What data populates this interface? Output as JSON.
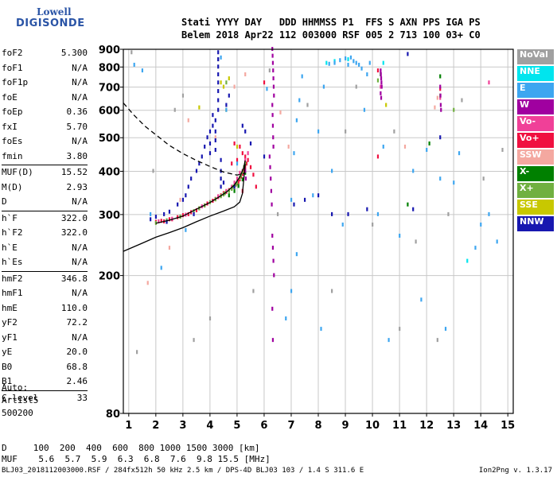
{
  "logo": {
    "line1": "Lowell",
    "line2": "DIGISONDE"
  },
  "header": {
    "line1": "Stati YYYY DAY   DDD HHMMSS P1  FFS S AXN PPS IGA PS",
    "line2": "Belem 2018 Apr22 112 003000 RSF 005 2 713 100 03+ C0"
  },
  "params": [
    {
      "label": "foF2",
      "value": "5.300"
    },
    {
      "label": "foF1",
      "value": "N/A"
    },
    {
      "label": "foF1p",
      "value": "N/A"
    },
    {
      "label": "foE",
      "value": "N/A"
    },
    {
      "label": "foEp",
      "value": "0.36"
    },
    {
      "label": "fxI",
      "value": "5.70"
    },
    {
      "label": "foEs",
      "value": "N/A"
    },
    {
      "label": "fmin",
      "value": "3.80"
    },
    {
      "label": "MUF(D)",
      "value": "15.52",
      "sep": true
    },
    {
      "label": "M(D)",
      "value": "2.93"
    },
    {
      "label": "D",
      "value": "N/A"
    },
    {
      "label": "h`F",
      "value": "322.0",
      "sep": true
    },
    {
      "label": "h`F2",
      "value": "322.0"
    },
    {
      "label": "h`E",
      "value": "N/A"
    },
    {
      "label": "h`Es",
      "value": "N/A"
    },
    {
      "label": "hmF2",
      "value": "346.8",
      "sep": true
    },
    {
      "label": "hmF1",
      "value": "N/A"
    },
    {
      "label": "hmE",
      "value": "110.0"
    },
    {
      "label": "yF2",
      "value": "72.2"
    },
    {
      "label": "yF1",
      "value": "N/A"
    },
    {
      "label": "yE",
      "value": "20.0"
    },
    {
      "label": "B0",
      "value": "68.8"
    },
    {
      "label": "B1",
      "value": "2.46"
    },
    {
      "label": "C-level",
      "value": "33",
      "sep": true
    }
  ],
  "auto": {
    "line1": "Auto:",
    "line2": "Artist5",
    "line3": "500200"
  },
  "bottom": {
    "d_line": "D     100  200  400  600  800 1000 1500 3000 [km]",
    "muf_line": "MUF    5.6  5.7  5.9  6.3  6.8  7.6  9.8 15.5 [MHz]"
  },
  "footer": {
    "text": "BLJ03_2018112003000.RSF / 284fx512h 50 kHz 2.5 km / DPS-4D BLJ03 103 / 1.4 S 311.6 E",
    "version": "Ion2Png v. 1.3.17"
  },
  "legend": [
    {
      "label": "NoVal",
      "color": "#a0a0a0"
    },
    {
      "label": "NNE",
      "color": "#00e5ee"
    },
    {
      "label": "E",
      "color": "#3da6f0"
    },
    {
      "label": "W",
      "color": "#a000a0"
    },
    {
      "label": "Vo-",
      "color": "#f04098"
    },
    {
      "label": "Vo+",
      "color": "#f01040"
    },
    {
      "label": "SSW",
      "color": "#f4a8a0"
    },
    {
      "label": "X-",
      "color": "#008000"
    },
    {
      "label": "X+",
      "color": "#70b040"
    },
    {
      "label": "SSE",
      "color": "#c8c800"
    },
    {
      "label": "NNW",
      "color": "#1818b0"
    }
  ],
  "chart_data": {
    "type": "scatter",
    "xlabel": "",
    "ylabel": "",
    "xlim": [
      0.8,
      15.2
    ],
    "ylim": [
      80,
      900
    ],
    "yscale": "log",
    "xticks": [
      1,
      2,
      3,
      4,
      5,
      6,
      7,
      8,
      9,
      10,
      11,
      12,
      13,
      14,
      15
    ],
    "yticks": [
      80,
      200,
      300,
      400,
      500,
      600,
      700,
      800,
      900
    ],
    "grid": true,
    "profile_curve": {
      "x": [
        0.8,
        1.5,
        2.0,
        2.5,
        3.0,
        3.5,
        4.0,
        4.5,
        4.9,
        5.1,
        5.2,
        5.25,
        5.3
      ],
      "y": [
        235,
        248,
        258,
        266,
        275,
        286,
        297,
        307,
        316,
        326,
        345,
        380,
        420
      ]
    },
    "trace_curve": {
      "x": [
        2.0,
        2.5,
        3.0,
        3.5,
        4.0,
        4.3,
        4.6,
        4.9,
        5.1,
        5.25,
        5.3
      ],
      "y": [
        283,
        289,
        297,
        311,
        325,
        336,
        348,
        365,
        385,
        410,
        430
      ]
    },
    "dashed_curve": {
      "x": [
        0.8,
        1.2,
        1.6,
        2.0,
        2.5,
        3.0,
        3.5,
        4.0,
        4.5,
        5.0,
        5.3
      ],
      "y": [
        630,
        580,
        540,
        510,
        475,
        450,
        430,
        413,
        398,
        390,
        395
      ]
    },
    "point_groups": [
      {
        "name": "Vo+",
        "x": [
          2.0,
          2.2,
          2.5,
          2.8,
          3.0,
          3.3,
          3.6,
          3.9,
          4.2,
          4.4,
          4.6,
          4.8,
          5.0,
          5.1,
          5.2,
          5.3,
          5.4,
          4.5,
          4.7,
          4.9,
          5.05,
          5.15,
          5.25,
          5.35,
          4.3,
          4.1,
          3.8,
          3.5,
          3.2,
          2.9,
          2.6,
          2.3,
          4.9,
          5.1,
          5.2,
          5.3,
          5.0,
          4.8,
          5.5,
          5.6,
          5.7,
          5.2,
          10.2,
          12.5,
          10.2,
          6.0
        ],
        "y": [
          285,
          287,
          290,
          294,
          298,
          304,
          312,
          322,
          332,
          340,
          348,
          357,
          368,
          378,
          392,
          410,
          430,
          345,
          352,
          360,
          372,
          385,
          400,
          420,
          336,
          328,
          318,
          308,
          300,
          295,
          290,
          286,
          480,
          470,
          450,
          440,
          430,
          420,
          410,
          390,
          360,
          350,
          780,
          690,
          440,
          720
        ]
      },
      {
        "name": "Vo-",
        "x": [
          2.1,
          2.6,
          3.1,
          3.7,
          4.3,
          4.8,
          5.0,
          5.2,
          5.3,
          4.6,
          5.1,
          5.4,
          4.9,
          10.3,
          12.5,
          14.3
        ],
        "y": [
          286,
          291,
          299,
          316,
          338,
          360,
          380,
          400,
          430,
          350,
          395,
          450,
          370,
          700,
          650,
          720
        ]
      },
      {
        "name": "X+",
        "x": [
          2.0,
          2.4,
          2.9,
          3.4,
          3.8,
          4.2,
          4.5,
          4.8,
          5.0,
          5.1,
          5.2,
          5.3,
          4.4,
          4.7,
          4.95,
          5.15,
          4.0,
          3.6,
          4.55,
          4.85,
          5.25,
          4.6,
          10.2,
          12.5,
          13.0
        ],
        "y": [
          283,
          288,
          295,
          306,
          318,
          331,
          342,
          355,
          370,
          382,
          398,
          420,
          338,
          350,
          365,
          390,
          325,
          312,
          345,
          360,
          410,
          720,
          730,
          660,
          600
        ]
      },
      {
        "name": "X-",
        "x": [
          4.9,
          5.05,
          5.2,
          5.3,
          10.3,
          11.3,
          12.1,
          12.5,
          4.7
        ],
        "y": [
          350,
          362,
          378,
          395,
          760,
          320,
          480,
          750,
          340
        ]
      },
      {
        "name": "SSW",
        "x": [
          1.7,
          2.5,
          3.2,
          4.9,
          5.3,
          6.6,
          11.2,
          12.3,
          12.4,
          4.2,
          2.9,
          6.9
        ],
        "y": [
          190,
          240,
          560,
          700,
          760,
          590,
          470,
          610,
          650,
          500,
          330,
          470
        ]
      },
      {
        "name": "SSE",
        "x": [
          3.6,
          4.5,
          4.7,
          10.5,
          4.4,
          5.0,
          4.6
        ],
        "y": [
          610,
          700,
          740,
          620,
          720,
          470,
          600
        ]
      },
      {
        "name": "NNE",
        "x": [
          8.3,
          8.6,
          9.1,
          10.4,
          13.5
        ],
        "y": [
          820,
          830,
          840,
          820,
          220
        ]
      },
      {
        "name": "E",
        "x": [
          1.5,
          2.2,
          3.1,
          4.4,
          4.6,
          5.0,
          6.1,
          7.0,
          7.1,
          7.2,
          7.3,
          7.4,
          8.1,
          8.2,
          8.4,
          8.6,
          8.8,
          9.0,
          9.1,
          9.2,
          9.3,
          9.4,
          9.5,
          9.6,
          10.2,
          10.4,
          11.0,
          11.5,
          12.0,
          12.5,
          13.0,
          13.2,
          14.0,
          14.6,
          9.8,
          9.9,
          8.5,
          7.8,
          6.8,
          7.0,
          7.2,
          10.6,
          11.8,
          12.7,
          13.8,
          14.3,
          8.0,
          8.9,
          9.7,
          1.2,
          1.8
        ],
        "y": [
          780,
          210,
          270,
          850,
          600,
          420,
          690,
          330,
          450,
          560,
          640,
          750,
          140,
          700,
          815,
          820,
          835,
          845,
          810,
          850,
          830,
          820,
          810,
          790,
          300,
          470,
          260,
          400,
          460,
          380,
          370,
          450,
          280,
          250,
          760,
          820,
          400,
          340,
          150,
          180,
          230,
          130,
          170,
          140,
          240,
          300,
          520,
          280,
          600,
          810,
          300
        ]
      },
      {
        "name": "NoVal",
        "x": [
          1.1,
          1.3,
          1.9,
          2.7,
          3.4,
          4.3,
          5.6,
          6.5,
          7.6,
          8.5,
          9.4,
          10.0,
          10.8,
          11.6,
          12.4,
          13.3,
          14.1,
          14.8,
          3.0,
          4.0,
          6.2,
          9.0,
          11.0,
          12.8
        ],
        "y": [
          880,
          120,
          400,
          600,
          130,
          840,
          180,
          300,
          620,
          180,
          700,
          280,
          520,
          250,
          130,
          640,
          380,
          460,
          660,
          150,
          780,
          520,
          140,
          300
        ]
      },
      {
        "name": "W",
        "x": [
          6.3,
          6.31,
          6.32,
          6.33,
          6.34,
          6.35,
          6.36,
          6.3,
          6.31,
          6.32,
          6.33,
          6.34,
          6.2,
          6.22,
          6.24,
          6.26,
          6.28,
          10.3,
          10.31,
          10.32,
          10.33,
          10.34,
          12.5,
          12.51,
          12.52,
          12.53,
          6.3,
          6.32,
          6.34,
          6.36,
          6.3,
          6.32,
          10.3,
          10.32,
          5.3,
          5.32
        ],
        "y": [
          900,
          860,
          820,
          780,
          740,
          700,
          660,
          620,
          580,
          540,
          500,
          470,
          440,
          410,
          380,
          350,
          320,
          780,
          760,
          740,
          720,
          700,
          700,
          660,
          620,
          600,
          260,
          240,
          220,
          200,
          160,
          130,
          670,
          650,
          400,
          380
        ]
      },
      {
        "name": "NNW",
        "x": [
          4.3,
          4.3,
          4.3,
          4.3,
          4.3,
          4.3,
          4.3,
          4.3,
          4.2,
          4.2,
          4.2,
          4.2,
          4.4,
          4.4,
          4.4,
          4.4,
          4.0,
          4.0,
          4.0,
          4.1,
          4.1,
          3.9,
          3.8,
          3.7,
          3.6,
          3.5,
          3.3,
          3.2,
          3.1,
          3.0,
          2.8,
          2.5,
          2.3,
          2.0,
          1.8,
          4.6,
          4.7,
          5.2,
          5.3,
          5.5,
          6.0,
          7.1,
          7.5,
          8.0,
          8.5,
          9.1,
          9.8,
          11.3,
          11.5,
          12.5,
          2.4,
          3.4,
          4.5,
          4.9
        ],
        "y": [
          880,
          840,
          800,
          760,
          720,
          680,
          640,
          600,
          560,
          520,
          490,
          460,
          430,
          400,
          380,
          360,
          520,
          480,
          450,
          580,
          540,
          500,
          470,
          440,
          420,
          400,
          380,
          360,
          340,
          330,
          320,
          305,
          300,
          295,
          290,
          620,
          660,
          540,
          520,
          480,
          440,
          320,
          330,
          340,
          300,
          300,
          310,
          870,
          310,
          500,
          285,
          300,
          370,
          360
        ]
      }
    ]
  }
}
